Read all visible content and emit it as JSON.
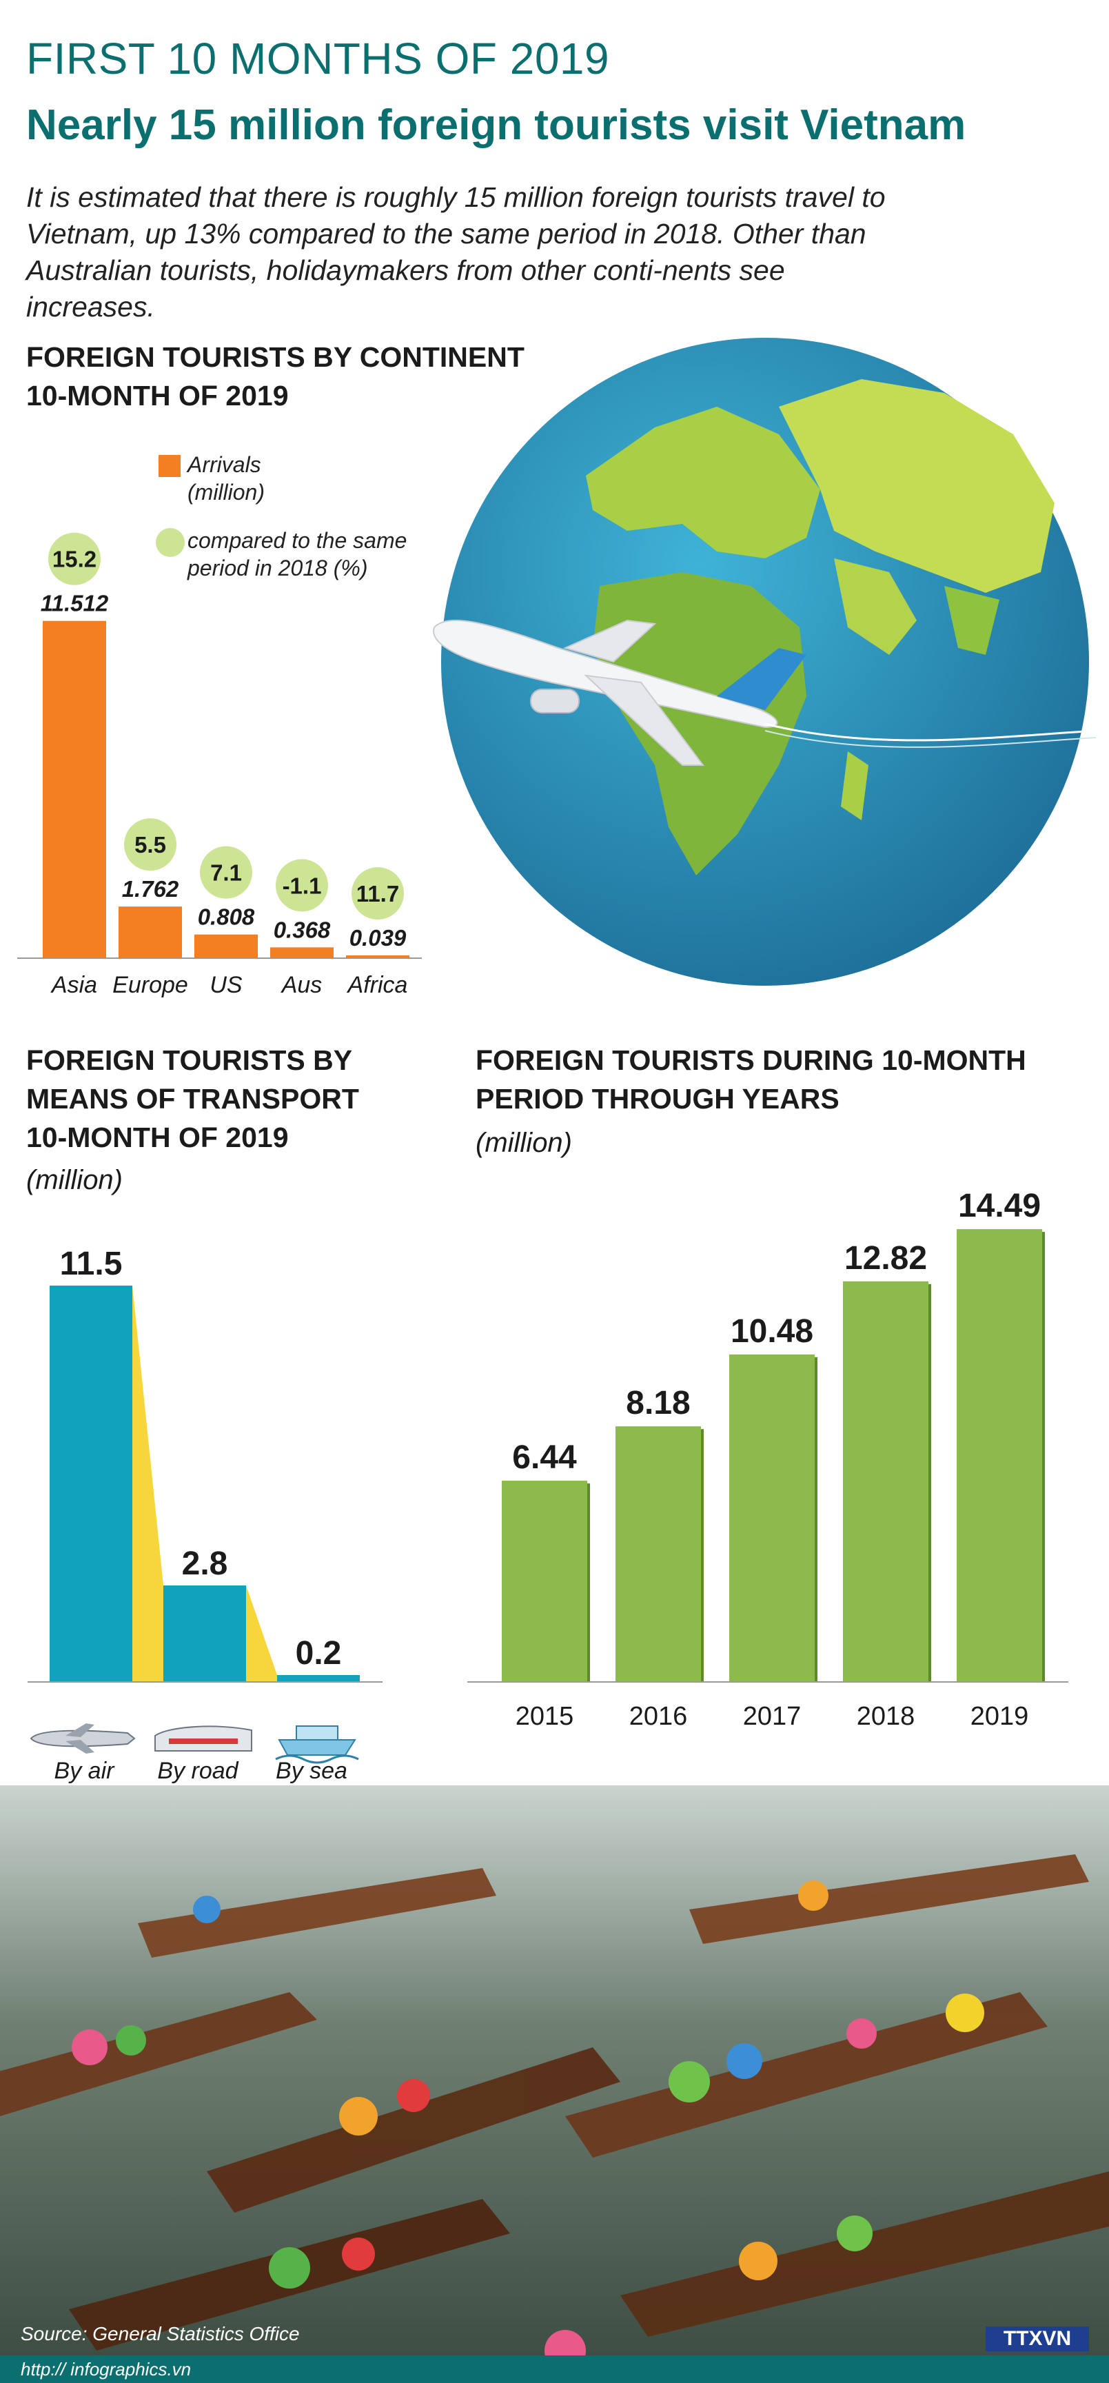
{
  "header": {
    "line1": "FIRST 10 MONTHS OF 2019",
    "line2": "Nearly 15 million foreign tourists visit Vietnam"
  },
  "intro": "It is estimated that there is roughly 15 million foreign tourists travel to Vietnam, up 13% compared to the same period in 2018. Other than Australian tourists, holidaymakers from other conti-nents see increases.",
  "colors": {
    "teal": "#0b6f6f",
    "orange": "#f47f22",
    "light_green": "#cde494",
    "cyan": "#11a3bb",
    "yellow": "#f7d63c",
    "green": "#8dbb4b"
  },
  "continent": {
    "title1": "FOREIGN TOURISTS BY CONTINENT",
    "title2": "10-MONTH OF 2019",
    "legend_arrivals_1": "Arrivals",
    "legend_arrivals_2": "(million)",
    "legend_compare_1": "compared to the same",
    "legend_compare_2": "period in 2018 (%)"
  },
  "transport": {
    "title1": "FOREIGN TOURISTS BY",
    "title2": "MEANS OF TRANSPORT",
    "title3": "10-MONTH OF 2019",
    "unit": "(million)",
    "icons": [
      "airplane-icon",
      "train-icon",
      "ship-icon"
    ]
  },
  "years": {
    "title1": "FOREIGN TOURISTS DURING 10-MONTH",
    "title2": "PERIOD THROUGH YEARS",
    "unit": "(million)"
  },
  "footer": {
    "source": "Source: General Statistics Office",
    "url": "http:// infographics.vn",
    "logo": "TTXVN"
  },
  "chart_data": [
    {
      "type": "bar",
      "title": "FOREIGN TOURISTS BY CONTINENT 10-MONTH OF 2019",
      "categories": [
        "Asia",
        "Europe",
        "US",
        "Aus",
        "Africa"
      ],
      "values": [
        11.512,
        1.762,
        0.808,
        0.368,
        0.039
      ],
      "value_labels": [
        "11.512",
        "1.762",
        "0.808",
        "0.368",
        "0.039"
      ],
      "growth_pct": [
        15.2,
        5.5,
        7.1,
        -1.1,
        11.7
      ],
      "growth_labels": [
        "15.2",
        "5.5",
        "7.1",
        "-1.1",
        "11.7"
      ],
      "ylim": [
        0,
        12
      ]
    },
    {
      "type": "bar",
      "title": "FOREIGN TOURISTS BY MEANS OF TRANSPORT 10-MONTH OF 2019",
      "categories": [
        "By air",
        "By road",
        "By sea"
      ],
      "values": [
        11.5,
        2.8,
        0.2
      ],
      "value_labels": [
        "11.5",
        "2.8",
        "0.2"
      ],
      "ylabel": "(million)",
      "ylim": [
        0,
        12
      ]
    },
    {
      "type": "bar",
      "title": "FOREIGN TOURISTS DURING 10-MONTH PERIOD THROUGH YEARS",
      "categories": [
        "2015",
        "2016",
        "2017",
        "2018",
        "2019"
      ],
      "values": [
        6.44,
        8.18,
        10.48,
        12.82,
        14.49
      ],
      "value_labels": [
        "6.44",
        "8.18",
        "10.48",
        "12.82",
        "14.49"
      ],
      "ylabel": "(million)",
      "ylim": [
        0,
        15
      ]
    }
  ]
}
